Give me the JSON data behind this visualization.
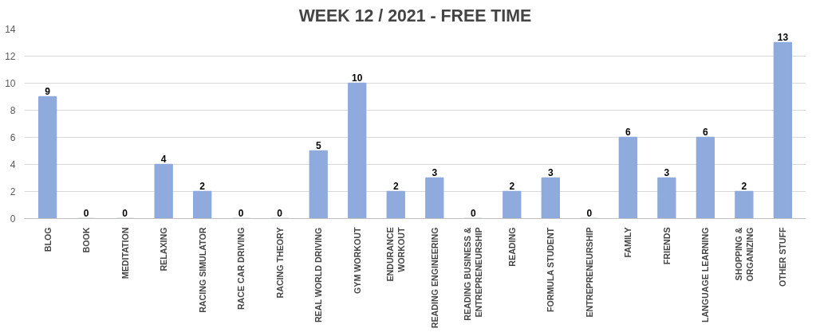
{
  "chart_data": {
    "type": "bar",
    "title": "WEEK 12 / 2021 - FREE TIME",
    "categories": [
      "BLOG",
      "BOOK",
      "MEDITATION",
      "RELAXING",
      "RACING SIMULATOR",
      "RACE CAR DRIVING",
      "RACING THEORY",
      "REAL WORLD DRIVING",
      "GYM WORKOUT",
      "ENDURANCE\nWORKOUT",
      "READING ENGINEERING",
      "READING BUSINESS &\nENTREPRENEURSHIP",
      "READING",
      "FORMULA STUDENT",
      "ENTREPRENEURSHIP",
      "FAMILY",
      "FRIENDS",
      "LANGUAGE LEARNING",
      "SHOPPING &\nORGANIZING",
      "OTHER STUFF"
    ],
    "values": [
      9,
      0,
      0,
      4,
      2,
      0,
      0,
      5,
      10,
      2,
      3,
      0,
      2,
      3,
      0,
      6,
      3,
      6,
      2,
      13
    ],
    "color": "#8faadc",
    "ylim": [
      0,
      14
    ],
    "yticks": [
      0,
      2,
      4,
      6,
      8,
      10,
      12,
      14
    ],
    "grid": "y",
    "data_labels": true
  }
}
